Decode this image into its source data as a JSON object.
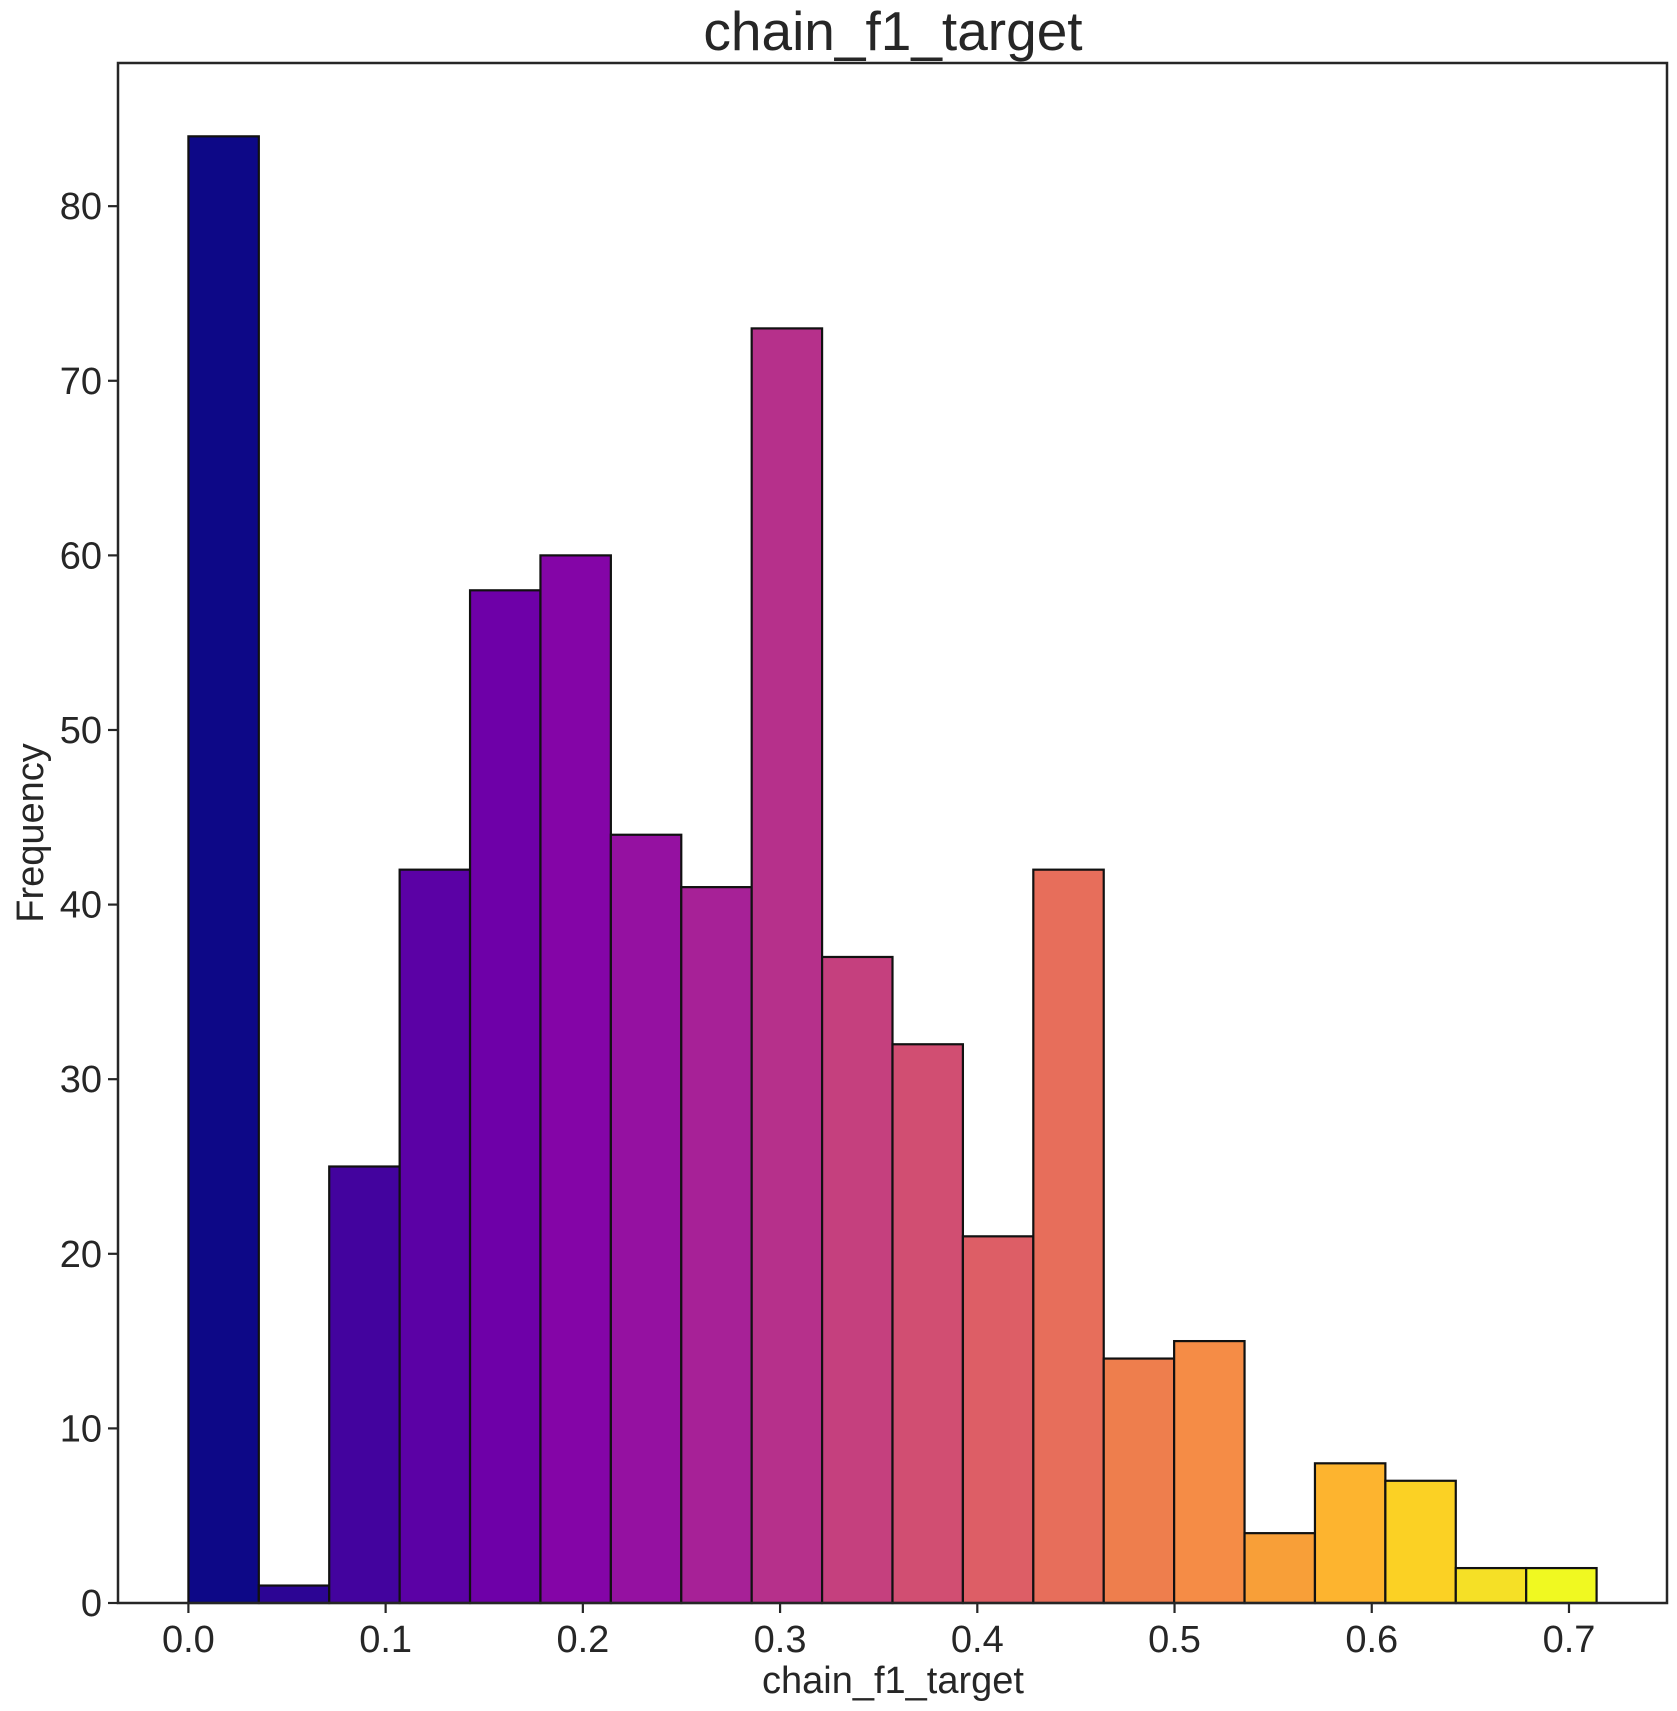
{
  "chart_data": {
    "type": "bar",
    "title": "chain_f1_target",
    "xlabel": "chain_f1_target",
    "ylabel": "Frequency",
    "xlim": [
      -0.0357,
      0.7497
    ],
    "ylim": [
      0,
      88.2
    ],
    "x_ticks": [
      0.0,
      0.1,
      0.2,
      0.3,
      0.4,
      0.5,
      0.6,
      0.7
    ],
    "x_tick_labels": [
      "0.0",
      "0.1",
      "0.2",
      "0.3",
      "0.4",
      "0.5",
      "0.6",
      "0.7"
    ],
    "y_ticks": [
      0,
      10,
      20,
      30,
      40,
      50,
      60,
      70,
      80
    ],
    "y_tick_labels": [
      "0",
      "10",
      "20",
      "30",
      "40",
      "50",
      "60",
      "70",
      "80"
    ],
    "grid": false,
    "bin_edges": [
      0.0,
      0.0357,
      0.0714,
      0.1071,
      0.1428,
      0.1785,
      0.2142,
      0.2499,
      0.2856,
      0.3213,
      0.357,
      0.3927,
      0.4284,
      0.4641,
      0.4998,
      0.5355,
      0.5712,
      0.6069,
      0.6426,
      0.6783,
      0.714
    ],
    "values": [
      84,
      1,
      25,
      42,
      58,
      60,
      44,
      41,
      73,
      37,
      32,
      21,
      42,
      14,
      15,
      4,
      8,
      7,
      2,
      2
    ],
    "colors": [
      "#0d0887",
      "#2c0594",
      "#43039e",
      "#5b01a5",
      "#6e00a8",
      "#8405a7",
      "#9511a1",
      "#a72197",
      "#b6308b",
      "#c5407e",
      "#d14e72",
      "#dd5e66",
      "#e76e5b",
      "#ee7e4d",
      "#f58c46",
      "#f89f38",
      "#fdb42f",
      "#fbd124",
      "#f5e026",
      "#f0f921"
    ]
  }
}
